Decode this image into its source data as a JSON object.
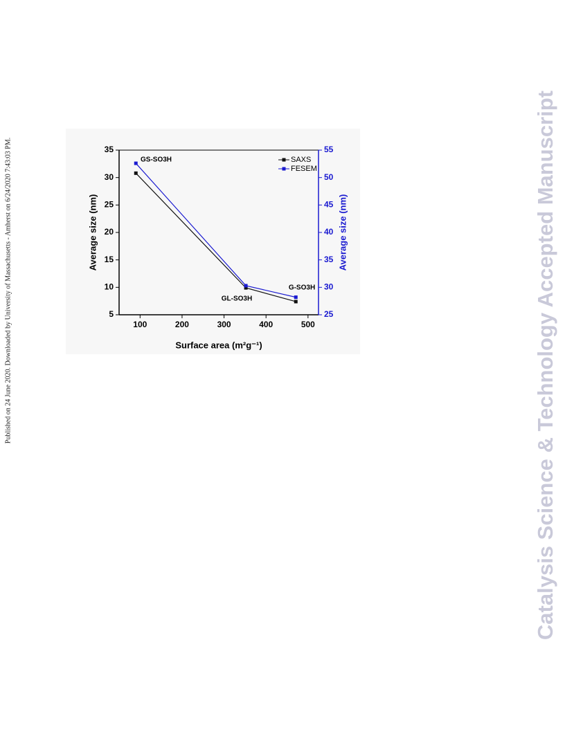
{
  "side_note": "Published on 24 June 2020. Downloaded by University of Massachusetts - Amherst on 6/24/2020 7:43:03 PM.",
  "watermark": "Catalysis Science & Technology Accepted Manuscript",
  "chart_data": {
    "type": "line",
    "x_label": "Surface area (m²g⁻¹)",
    "y_label": "Average size (nm)",
    "y2_label": "Average size (nm)",
    "x": [
      90,
      352,
      471
    ],
    "series": [
      {
        "name": "SAXS",
        "color": "#111111",
        "values": [
          30.8,
          9.9,
          7.4
        ]
      },
      {
        "name": "FESEM",
        "color": "#1a1ad0",
        "axis": "y2",
        "values": [
          52.6,
          30.3,
          28.2
        ]
      }
    ],
    "annotations": [
      "GS-SO3H",
      "GL-SO3H",
      "G-SO3H"
    ],
    "xlim": [
      50,
      525
    ],
    "xticks": [
      100,
      200,
      300,
      400,
      500
    ],
    "ylim": [
      5,
      35
    ],
    "yticks": [
      5,
      10,
      15,
      20,
      25,
      30,
      35
    ],
    "y2lim": [
      25,
      55
    ],
    "y2ticks": [
      25,
      30,
      35,
      40,
      45,
      50,
      55
    ],
    "legend": "upper right",
    "grid": false
  }
}
